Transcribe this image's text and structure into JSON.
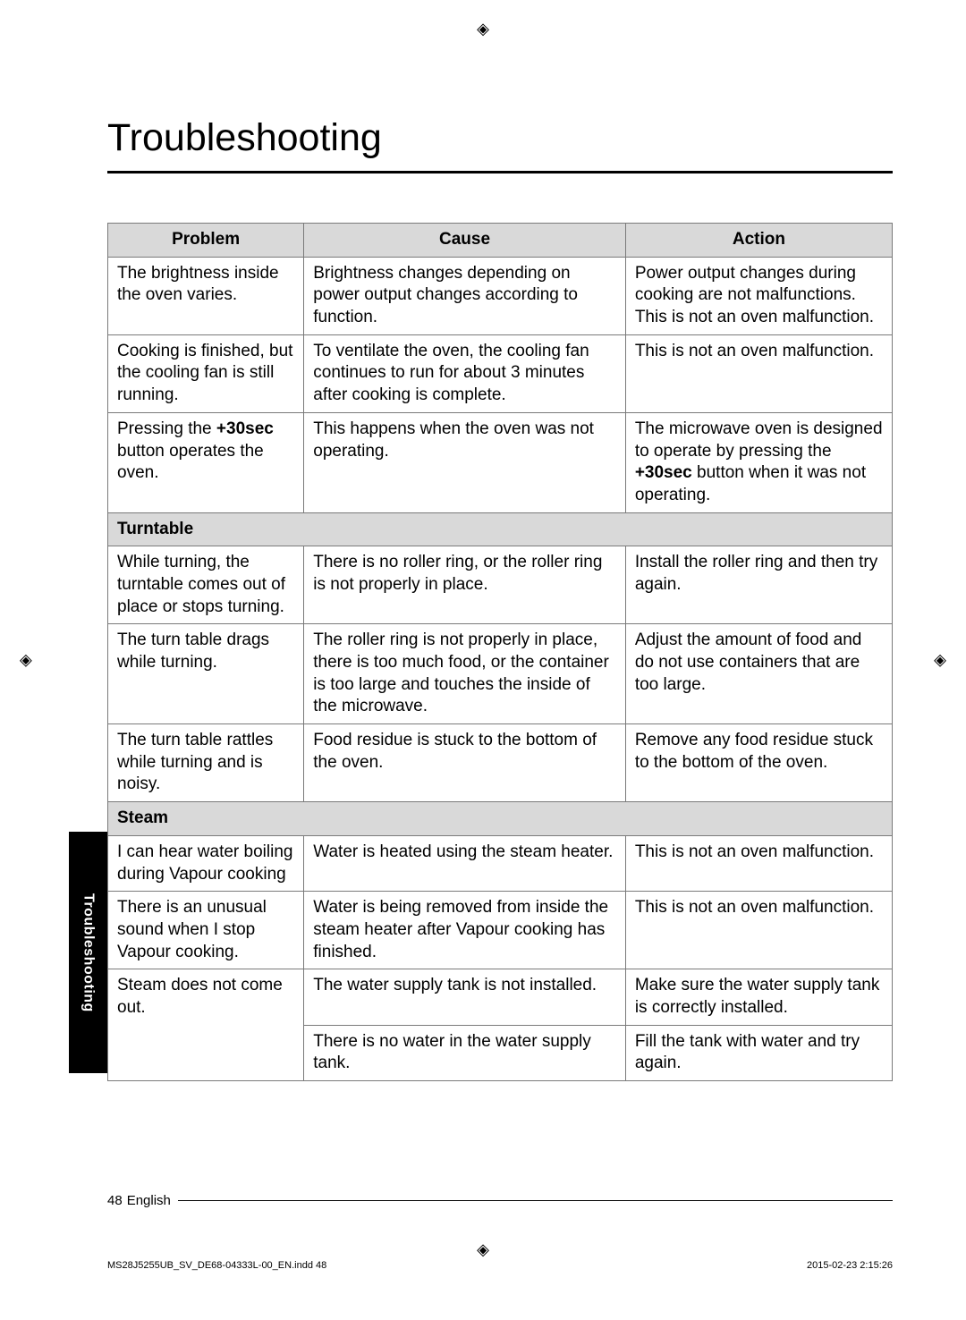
{
  "title": "Troubleshooting",
  "headers": {
    "problem": "Problem",
    "cause": "Cause",
    "action": "Action"
  },
  "rows": [
    {
      "problem": "The brightness inside the oven varies.",
      "cause": "Brightness changes depending on power output changes according to function.",
      "action": "Power output changes during cooking are not malfunctions. This is not an oven malfunction."
    },
    {
      "problem": "Cooking is finished, but the cooling fan is still running.",
      "cause": "To ventilate the oven, the cooling fan continues to run for about 3 minutes after cooking is complete.",
      "action": "This is not an oven malfunction."
    },
    {
      "problem_html": "Pressing the <span class=\"bold\">+30sec</span> button operates the oven.",
      "cause": "This happens when the oven was not operating.",
      "action_html": "The microwave oven is designed to operate by pressing the <span class=\"bold\">+30sec</span> button when it was not operating."
    }
  ],
  "section_turntable": "Turntable",
  "turntable_rows": [
    {
      "problem": "While turning, the turntable comes out of place or stops turning.",
      "cause": "There is no roller ring, or the roller ring is not properly in place.",
      "action": "Install the roller ring and then try again."
    },
    {
      "problem": "The turn table drags while turning.",
      "cause": "The roller ring is not properly in place, there is too much food, or the container is too large and touches the inside of the microwave.",
      "action": "Adjust the amount of food and do not use containers that are too large."
    },
    {
      "problem": "The turn table rattles while turning and is noisy.",
      "cause": "Food residue is stuck to the bottom of the oven.",
      "action": "Remove any food residue stuck to the bottom of the oven."
    }
  ],
  "section_steam": "Steam",
  "steam_rows": [
    {
      "problem": "I can hear water boiling during Vapour cooking",
      "cause": "Water is heated using the steam heater.",
      "action": "This is not an oven malfunction."
    },
    {
      "problem": "There is an unusual sound when I stop Vapour cooking.",
      "cause": "Water is being removed from inside the steam heater after Vapour cooking has finished.",
      "action": "This is not an oven malfunction."
    },
    {
      "problem": "Steam does not come out.",
      "cause": "The water supply tank is not installed.",
      "action": "Make sure the water supply tank is correctly installed.",
      "rowspan": 2
    },
    {
      "cause": "There is no water in the water supply tank.",
      "action": "Fill the tank with water and try again."
    }
  ],
  "tab_label": "Troubleshooting",
  "footer": {
    "page_num": "48",
    "language": "English"
  },
  "print_info": {
    "filename": "MS28J5255UB_SV_DE68-04333L-00_EN.indd   48",
    "timestamp": "2015-02-23   2:15:26"
  }
}
